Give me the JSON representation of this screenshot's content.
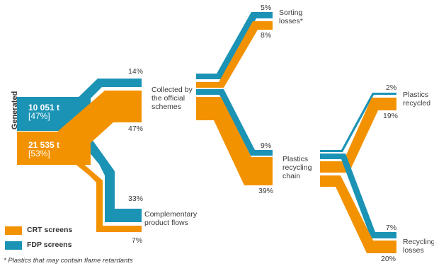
{
  "colors": {
    "crt": "#f39200",
    "fdp": "#1b93b5"
  },
  "generated": {
    "label": "Generated",
    "fdp_value": "10 051 t",
    "fdp_pct": "[47%]",
    "crt_value": "21 535 t",
    "crt_pct": "[53%]"
  },
  "stage1": {
    "collected_label": [
      "Collected by",
      "the official",
      "schemes"
    ],
    "collected_fdp_pct": "14%",
    "collected_crt_pct": "47%",
    "complementary_label": [
      "Complementary",
      "product flows"
    ],
    "complementary_fdp_pct": "33%",
    "complementary_crt_pct": "7%"
  },
  "stage2": {
    "sorting_label": [
      "Sorting",
      "losses*"
    ],
    "sorting_fdp_pct": "5%",
    "sorting_crt_pct": "8%",
    "chain_label": [
      "Plastics",
      "recycling",
      "chain"
    ],
    "chain_fdp_pct": "9%",
    "chain_crt_pct": "39%"
  },
  "stage3": {
    "recycled_label": [
      "Plastics",
      "recycled"
    ],
    "recycled_fdp_pct": "2%",
    "recycled_crt_pct": "19%",
    "losses_label": [
      "Recycling",
      "losses"
    ],
    "losses_fdp_pct": "7%",
    "losses_crt_pct": "20%"
  },
  "legend": {
    "crt": "CRT screens",
    "fdp": "FDP screens"
  },
  "footnote": "* Plastics that may contain flame retardants"
}
